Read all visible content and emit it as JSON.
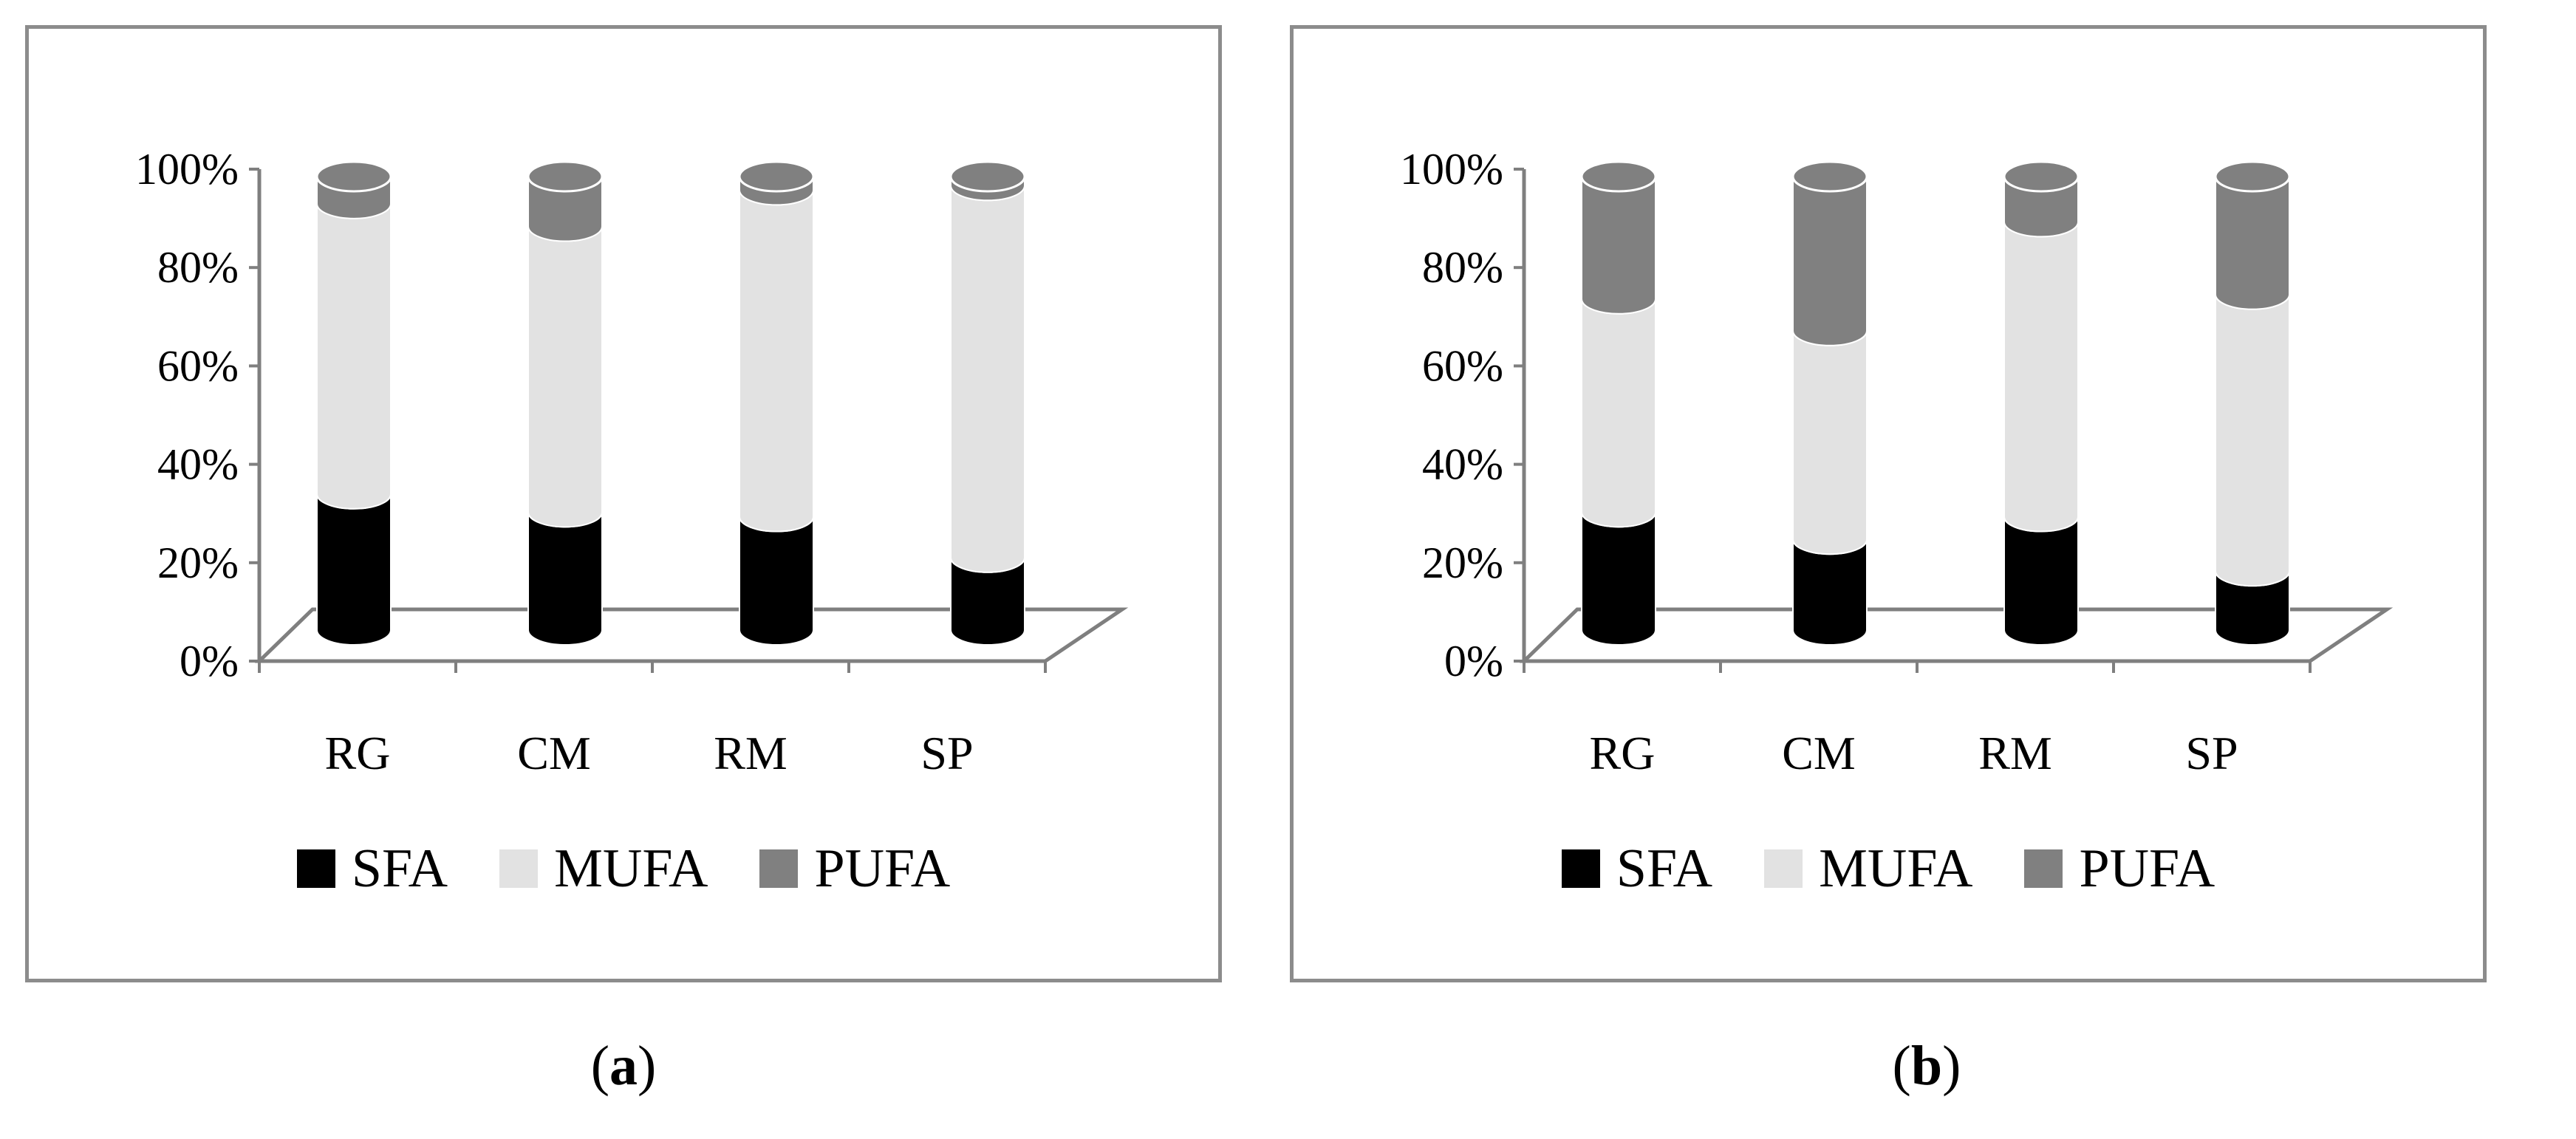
{
  "captions": {
    "a": {
      "open": "(",
      "letter": "a",
      "close": ")"
    },
    "b": {
      "open": "(",
      "letter": "b",
      "close": ")"
    }
  },
  "colors": {
    "SFA": "#000000",
    "MUFA": "#e2e2e2",
    "PUFA": "#808080"
  },
  "chart_data": [
    {
      "type": "bar",
      "stacked": true,
      "percent_stacked": true,
      "style": "3d-cylinder",
      "categories": [
        "RG",
        "CM",
        "RM",
        "SP"
      ],
      "series": [
        {
          "name": "SFA",
          "values": [
            30,
            26,
            25,
            16
          ]
        },
        {
          "name": "MUFA",
          "values": [
            64,
            63,
            72,
            82
          ]
        },
        {
          "name": "PUFA",
          "values": [
            6,
            11,
            3,
            2
          ]
        }
      ],
      "yticks": [
        "0%",
        "20%",
        "40%",
        "60%",
        "80%",
        "100%"
      ],
      "ylim": [
        0,
        100
      ],
      "legend": "bottom",
      "grid": false
    },
    {
      "type": "bar",
      "stacked": true,
      "percent_stacked": true,
      "style": "3d-cylinder",
      "categories": [
        "RG",
        "CM",
        "RM",
        "SP"
      ],
      "series": [
        {
          "name": "SFA",
          "values": [
            26,
            20,
            25,
            13
          ]
        },
        {
          "name": "MUFA",
          "values": [
            47,
            46,
            65,
            61
          ]
        },
        {
          "name": "PUFA",
          "values": [
            27,
            34,
            10,
            26
          ]
        }
      ],
      "yticks": [
        "0%",
        "20%",
        "40%",
        "60%",
        "80%",
        "100%"
      ],
      "ylim": [
        0,
        100
      ],
      "legend": "bottom",
      "grid": false
    }
  ]
}
